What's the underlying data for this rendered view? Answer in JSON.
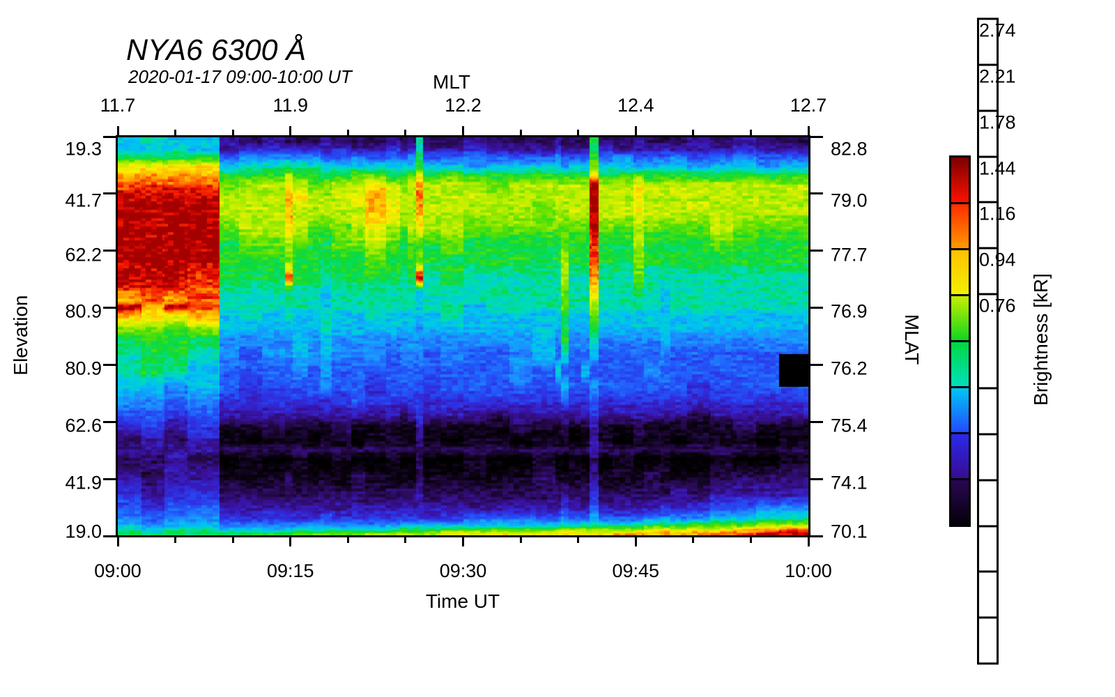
{
  "title": "NYA6 6300 Å",
  "subtitle": "2020-01-17 09:00-10:00 UT",
  "axes": {
    "top": {
      "label": "MLT",
      "tick_labels": [
        "11.7",
        "11.9",
        "12.2",
        "12.4",
        "12.7"
      ]
    },
    "bottom": {
      "label": "Time UT",
      "tick_labels": [
        "09:00",
        "09:15",
        "09:30",
        "09:45",
        "10:00"
      ]
    },
    "left": {
      "label": "Elevation",
      "tick_labels": [
        "19.3",
        "41.7",
        "62.2",
        "80.9",
        "80.9",
        "62.6",
        "41.9",
        "19.0"
      ]
    },
    "right": {
      "label": "MLAT",
      "tick_labels": [
        "82.8",
        "79.0",
        "77.7",
        "76.9",
        "76.2",
        "75.4",
        "74.1",
        "70.1"
      ]
    }
  },
  "colorbar": {
    "label": "Brightness [kR]",
    "tick_labels": [
      "2.74",
      "2.21",
      "1.78",
      "1.44",
      "1.16",
      "0.94",
      "0.76"
    ],
    "segment_colors": [
      [
        "#7c0000",
        "#ff1200"
      ],
      [
        "#ff2a00",
        "#ff9c00"
      ],
      [
        "#ffc000",
        "#f2f200"
      ],
      [
        "#c8ef00",
        "#0cd41e"
      ],
      [
        "#00d83e",
        "#00e0c2"
      ],
      [
        "#00cbf2",
        "#2446ff"
      ],
      [
        "#2a2aee",
        "#380b8e"
      ],
      [
        "#2a0756",
        "#050008"
      ]
    ]
  },
  "chart_data": {
    "type": "heatmap",
    "title": "NYA6 6300 Å",
    "subtitle": "2020-01-17 09:00-10:00 UT",
    "xlabel": "Time UT",
    "x2label": "MLT",
    "ylabel": "Elevation",
    "y2label": "MLAT",
    "zlabel": "Brightness [kR]",
    "x_range_minutes": [
      0,
      60
    ],
    "x_major_ticks_minutes": [
      0,
      15,
      30,
      45,
      60
    ],
    "x_minor_ticks_minutes": [
      5,
      10,
      20,
      25,
      35,
      40,
      50,
      55
    ],
    "mlt_at_major_ticks": [
      11.7,
      11.9,
      12.2,
      12.4,
      12.7
    ],
    "elevation_ticks": [
      19.3,
      41.7,
      62.2,
      80.9,
      80.9,
      62.6,
      41.9,
      19.0
    ],
    "mlat_ticks": [
      82.8,
      79.0,
      77.7,
      76.9,
      76.2,
      75.4,
      74.1,
      70.1
    ],
    "colorbar_ticks_kR": [
      2.74,
      2.21,
      1.78,
      1.44,
      1.16,
      0.94,
      0.76
    ],
    "value_scale": {
      "type": "log",
      "min_kR": 0.62,
      "max_kR": 3.39,
      "encoding": "each grid character is hex 0-15; kR = 0.62*(3.39/0.62)^(code/15)"
    },
    "events": {
      "data_gap_boundary_UT": "09:09",
      "bright_red_patch": "09:00-09:09 upper elevations, >3 kR",
      "vertical_stripes_UT": [
        "09:15",
        "09:18",
        "09:21-09:23",
        "09:25",
        "09:26",
        "09:39",
        "09:41",
        "09:45",
        "09:48"
      ]
    },
    "col_edges_minutes": [
      0,
      2,
      4,
      6,
      8.8,
      10.5,
      12.5,
      14.5,
      15.2,
      16.5,
      17.6,
      18.6,
      20.3,
      21.5,
      23.3,
      24.5,
      25.2,
      25.9,
      26.5,
      28,
      30,
      32,
      34,
      36,
      38,
      38.5,
      39.2,
      40.3,
      41,
      41.8,
      43,
      44.8,
      45.7,
      47.2,
      48,
      49.5,
      51.5,
      53.5,
      55.5,
      57.5,
      60
    ],
    "row_center_frac": [
      0.011,
      0.031,
      0.05,
      0.071,
      0.094,
      0.12,
      0.151,
      0.187,
      0.226,
      0.268,
      0.311,
      0.353,
      0.387,
      0.409,
      0.425,
      0.447,
      0.474,
      0.506,
      0.545,
      0.588,
      0.627,
      0.662,
      0.697,
      0.731,
      0.766,
      0.786,
      0.809,
      0.854,
      0.898,
      0.932,
      0.958,
      0.976,
      0.988,
      0.997
    ],
    "grid_codes": [
      "787732322232223228223222322292232223 2322",
      "7787344444343343483343334333943334333433",
      "9999566666556555695565556555956555655655",
      "cccc788888777777797767777677a77677767767",
      "dddd999b9999aa99ac9a99999999c99a99999999",
      "eeeeabbcbaabbcbabdbbbabbbbbbfbbcbbbbbbbb",
      "ffffbbbdcbbbcdcbbebbbbbbbbbbfbbcbbbbbbbb",
      "ffffbbbdbbbbbdcbbdbbbbbabbbbfbbcbbbbbbbb",
      "ffffabbcbaaabcbabcbbaaaaaaaafaabaaaabaaa",
      "ffff9aaba99aaba9aa9a99999a99e99b9999a999",
      "ffff999a99999a999a9999999b99e99a99999999",
      "fffe999e998999989f8988888b88d88a88888888",
      "eeee888888788888878888888a88c88987888888",
      "dede888888788888878888888a88b88887888888",
      "fdfe888888788888878878888a88b88887888888",
      "dccd787877877877777877777977a77777777777",
      "bbab777777877777767777777977977777777777",
      "9999666676766666666666676966866667666666",
      "8998656676766656665655675855755556555555",
      "8987555565655555555555658557 55556555555",
      "7767545555655455554555555755655555545555",
      "6656444444445444444444444544544444444444",
      "5545333333333332343332333333433333323333",
      "3434112111121111131111211211311211111211",
      "2323101110110111021011011101310111011101",
      "3333222222222222222222222222322222222222",
      "2232010010010010020010010010201001001001",
      "3233111211112111121111121111311121112222",
      "4344222222222222232222222322422222323333",
      "5455333333333333333333333433533334345566",
      "6566444444544444444455555655755566667788",
      "7677666666666667777777777888888899 9aaabb",
      "8788777788888889999aaaaabbbbbbbbcccccdde",
      "98999999aaaaabbbbbbcccccccccccddddddeeff"
    ],
    "colormap_stops": [
      [
        0.0,
        "#000000"
      ],
      [
        0.055,
        "#0b0310"
      ],
      [
        0.133,
        "#2c0b5a"
      ],
      [
        0.2,
        "#3a14a8"
      ],
      [
        0.267,
        "#3030e2"
      ],
      [
        0.333,
        "#2258fa"
      ],
      [
        0.4,
        "#1f8dff"
      ],
      [
        0.467,
        "#00c2f4"
      ],
      [
        0.533,
        "#00dfae"
      ],
      [
        0.6,
        "#0cda3a"
      ],
      [
        0.667,
        "#5fe100"
      ],
      [
        0.733,
        "#baee00"
      ],
      [
        0.8,
        "#fdf200"
      ],
      [
        0.867,
        "#ffb200"
      ],
      [
        0.92,
        "#ff5500"
      ],
      [
        0.963,
        "#ee0e00"
      ],
      [
        1.0,
        "#a30000"
      ]
    ]
  }
}
